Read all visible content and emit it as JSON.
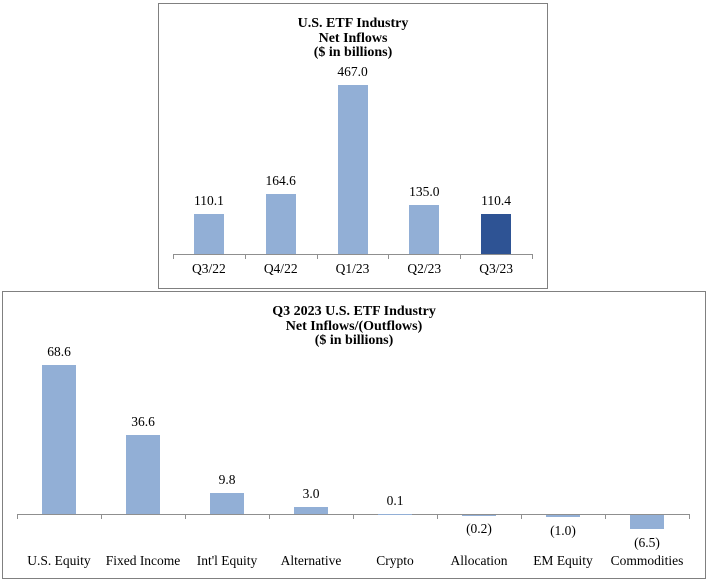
{
  "page": {
    "background": "#ffffff",
    "box_border_color": "#808080"
  },
  "chart_data": [
    {
      "type": "bar",
      "title": "U.S. ETF Industry",
      "subtitle": "Net Inflows",
      "units_label": "($ in billions)",
      "categories": [
        "Q3/22",
        "Q4/22",
        "Q1/23",
        "Q2/23",
        "Q3/23"
      ],
      "values": [
        110.1,
        164.6,
        467.0,
        135.0,
        110.4
      ],
      "data_labels": [
        "110.1",
        "164.6",
        "467.0",
        "135.0",
        "110.4"
      ],
      "bar_color": "#92AFD6",
      "highlight_index": 4,
      "highlight_color": "#2E5394",
      "axis_color": "#8F8F8F",
      "xlabel": "",
      "ylabel": "",
      "ylim": [
        0,
        500
      ],
      "grid": false,
      "legend": "none",
      "data_label_position": "outside-end"
    },
    {
      "type": "bar",
      "title": "Q3 2023 U.S. ETF Industry",
      "subtitle": "Net Inflows/(Outflows)",
      "units_label": "($ in billions)",
      "categories": [
        "U.S. Equity",
        "Fixed Income",
        "Int'l Equity",
        "Alternative",
        "Crypto",
        "Allocation",
        "EM Equity",
        "Commodities"
      ],
      "values": [
        68.6,
        36.6,
        9.8,
        3.0,
        0.1,
        -0.2,
        -1.0,
        -6.5
      ],
      "data_labels": [
        "68.6",
        "36.6",
        "9.8",
        "3.0",
        "0.1",
        "(0.2)",
        "(1.0)",
        "(6.5)"
      ],
      "bar_color": "#92AFD6",
      "highlight_index": -1,
      "highlight_color": "#2E5394",
      "axis_color": "#8F8F8F",
      "xlabel": "",
      "ylabel": "",
      "ylim": [
        -10,
        75
      ],
      "grid": false,
      "legend": "none",
      "data_label_position": "outside-end"
    }
  ]
}
